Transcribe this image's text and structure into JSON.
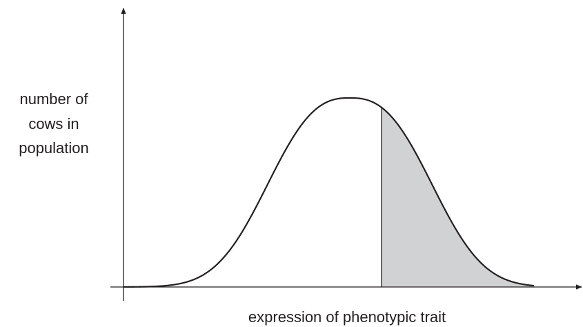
{
  "y_label": [
    "number of",
    "cows in",
    "population"
  ],
  "x_label": "expression of phenotypic trait"
}
